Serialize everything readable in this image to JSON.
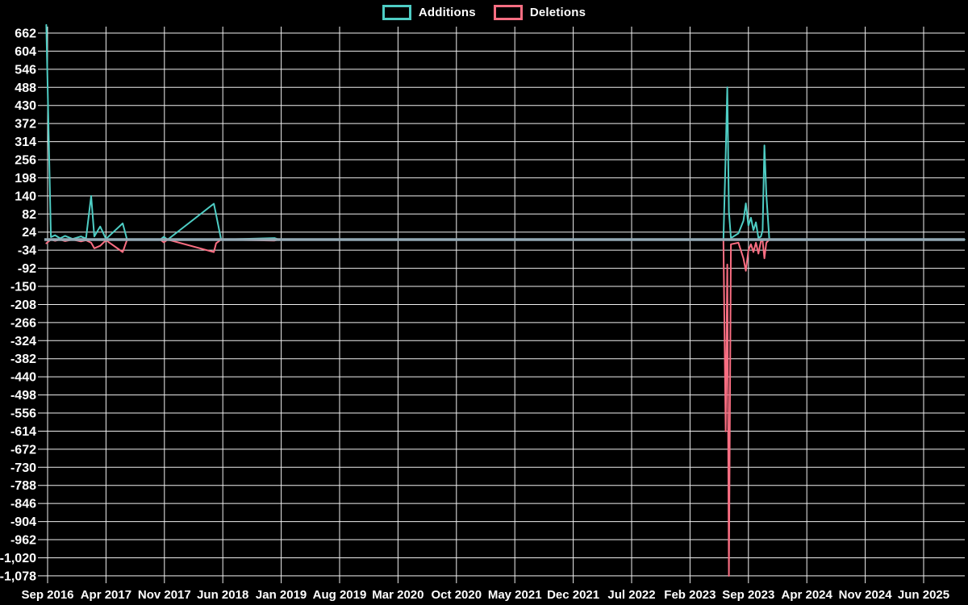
{
  "page": {
    "background_color": "#000000",
    "text_color": "#ffffff",
    "grid_color": "#f0f0f0"
  },
  "legend": {
    "items": [
      {
        "label": "Additions",
        "color": "#4ecdc4"
      },
      {
        "label": "Deletions",
        "color": "#fa6e82"
      }
    ]
  },
  "chart_data": {
    "type": "line",
    "title": "",
    "xlabel": "",
    "ylabel": "",
    "legend_position": "top-center",
    "grid": true,
    "background": "#000000",
    "grid_color": "#f0f0f0",
    "baseline_color": "#93a9b4",
    "ylim": [
      -1078,
      662
    ],
    "y_step": 58,
    "x_gridline_step_months": 7,
    "xlim_months": [
      -0.4,
      110
    ],
    "x_axis": {
      "labels": [
        "Sep 2016",
        "Apr 2017",
        "Nov 2017",
        "Jun 2018",
        "Jan 2019",
        "Aug 2019",
        "Mar 2020",
        "Oct 2020",
        "May 2021",
        "Dec 2021",
        "Jul 2022",
        "Feb 2023",
        "Sep 2023",
        "Apr 2024",
        "Nov 2024",
        "Jun 2025"
      ]
    },
    "y_axis": {
      "ticks": [
        662,
        604,
        546,
        488,
        430,
        372,
        314,
        256,
        198,
        140,
        82,
        24,
        -34,
        -92,
        -150,
        -208,
        -266,
        -324,
        -382,
        -440,
        -498,
        -556,
        -614,
        -672,
        -730,
        -788,
        -846,
        -904,
        -962,
        -1020,
        -1078
      ],
      "tick_labels": [
        "662",
        "604",
        "546",
        "488",
        "430",
        "372",
        "314",
        "256",
        "198",
        "140",
        "82",
        "24",
        "-34",
        "-92",
        "-150",
        "-208",
        "-266",
        "-324",
        "-382",
        "-440",
        "-498",
        "-556",
        "-614",
        "-672",
        "-730",
        "-788",
        "-846",
        "-904",
        "-962",
        "-1,020",
        "-1,078"
      ]
    },
    "x_months_since_sep_2016": [
      -0.15,
      0.4,
      0.9,
      1.5,
      2.1,
      3.0,
      4.0,
      4.6,
      5.22,
      5.6,
      6.3,
      7.0,
      9.0,
      9.5,
      10.0,
      13.5,
      13.93,
      14.4,
      19.93,
      20.2,
      20.8,
      27.2,
      27.7,
      81.0,
      81.27,
      81.47,
      81.66,
      81.9,
      82.8,
      83.4,
      83.69,
      84.0,
      84.3,
      84.6,
      84.9,
      85.2,
      85.5,
      85.7,
      85.91,
      86.15,
      86.5,
      109.9
    ],
    "series": [
      {
        "name": "Additions",
        "color": "#4ecdc4",
        "values": [
          688,
          8,
          14,
          4,
          12,
          2,
          10,
          3,
          140,
          10,
          42,
          2,
          52,
          2,
          0,
          0,
          9,
          0,
          115,
          80,
          0,
          5,
          0,
          0,
          270,
          488,
          90,
          5,
          20,
          60,
          116,
          45,
          70,
          30,
          55,
          5,
          10,
          30,
          302,
          145,
          0,
          0
        ]
      },
      {
        "name": "Deletions",
        "color": "#fa6e82",
        "values": [
          -12,
          0,
          -4,
          0,
          -5,
          0,
          -6,
          -2,
          -10,
          -28,
          -20,
          -2,
          -40,
          -2,
          0,
          0,
          -9,
          0,
          -40,
          -12,
          0,
          -3,
          0,
          0,
          -615,
          -80,
          -1078,
          -15,
          -10,
          -60,
          -100,
          -35,
          -15,
          -40,
          -10,
          -45,
          -5,
          -5,
          -60,
          -10,
          0,
          0
        ]
      }
    ]
  }
}
